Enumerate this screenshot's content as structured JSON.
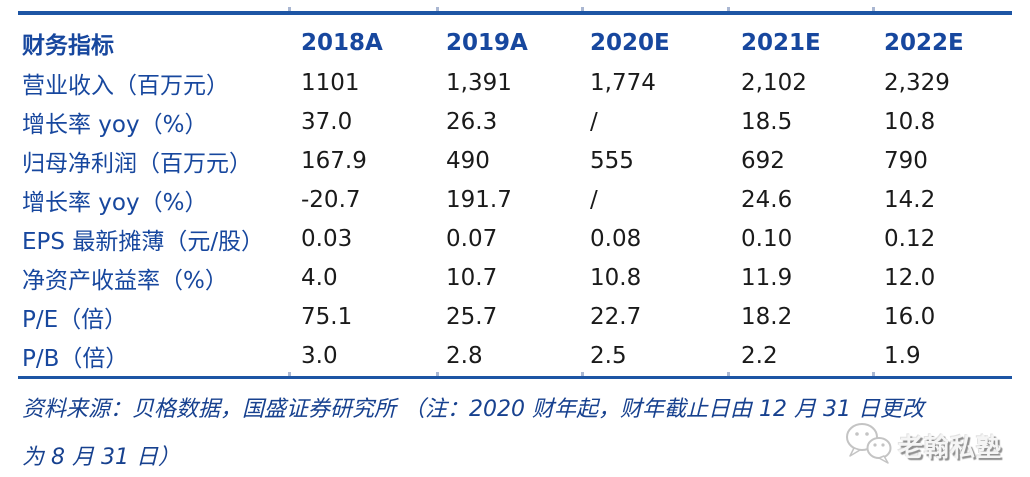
{
  "chart_data": {
    "type": "table",
    "header": {
      "metric_label": "财务指标",
      "years": [
        "2018A",
        "2019A",
        "2020E",
        "2021E",
        "2022E"
      ]
    },
    "rows": [
      {
        "label": "营业收入（百万元）",
        "values": [
          "1101",
          "1,391",
          "1,774",
          "2,102",
          "2,329"
        ]
      },
      {
        "label": "增长率 yoy（%）",
        "values": [
          "37.0",
          "26.3",
          "/",
          "18.5",
          "10.8"
        ]
      },
      {
        "label": "归母净利润（百万元）",
        "values": [
          "167.9",
          "490",
          "555",
          "692",
          "790"
        ]
      },
      {
        "label": "增长率 yoy（%）",
        "values": [
          "-20.7",
          "191.7",
          "/",
          "24.6",
          "14.2"
        ]
      },
      {
        "label": "EPS 最新摊薄（元/股）",
        "values": [
          "0.03",
          "0.07",
          "0.08",
          "0.10",
          "0.12"
        ]
      },
      {
        "label": "净资产收益率（%）",
        "values": [
          "4.0",
          "10.7",
          "10.8",
          "11.9",
          "12.0"
        ]
      },
      {
        "label": "P/E（倍）",
        "values": [
          "75.1",
          "25.7",
          "22.7",
          "18.2",
          "16.0"
        ]
      },
      {
        "label": "P/B（倍）",
        "values": [
          "3.0",
          "2.8",
          "2.5",
          "2.2",
          "1.9"
        ]
      }
    ]
  },
  "footer": {
    "line1": "资料来源：贝格数据，国盛证券研究所  （注：2020 财年起，财年截止日由 12 月 31 日更改",
    "line2": "为 8 月 31 日）"
  },
  "watermark": {
    "text": "老翰私塾",
    "icon": "wechat-icon"
  },
  "colors": {
    "rule_blue": "#1d55a4",
    "label_blue": "#17479e",
    "footer_blue": "#17418f",
    "value_black": "#1a1a1a",
    "watermark_gray": "#8f8f8f"
  }
}
